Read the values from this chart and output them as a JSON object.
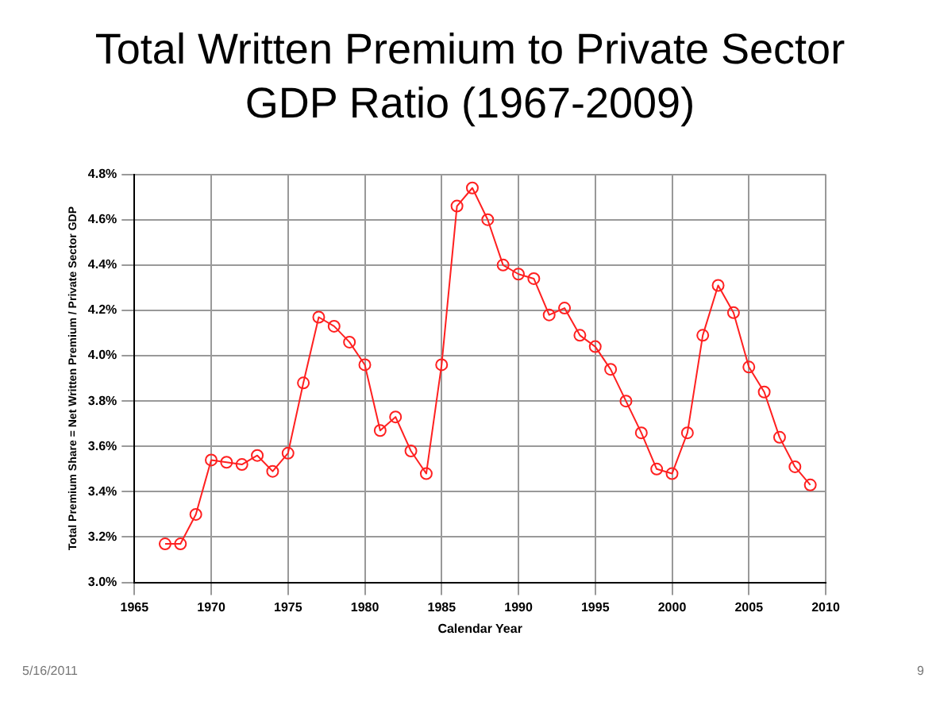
{
  "chart_data": {
    "type": "line",
    "title": "Total Written Premium to Private Sector GDP Ratio (1967-2009)",
    "xlabel": "Calendar Year",
    "ylabel": "Total Premium Share = Net Written Premium / Private Sector GDP",
    "x": [
      1967,
      1968,
      1969,
      1970,
      1971,
      1972,
      1973,
      1974,
      1975,
      1976,
      1977,
      1978,
      1979,
      1980,
      1981,
      1982,
      1983,
      1984,
      1985,
      1986,
      1987,
      1988,
      1989,
      1990,
      1991,
      1992,
      1993,
      1994,
      1995,
      1996,
      1997,
      1998,
      1999,
      2000,
      2001,
      2002,
      2003,
      2004,
      2005,
      2006,
      2007,
      2008,
      2009
    ],
    "series": [
      {
        "color": "#ff2020",
        "values": [
          3.17,
          3.17,
          3.3,
          3.54,
          3.53,
          3.52,
          3.56,
          3.49,
          3.57,
          3.88,
          4.17,
          4.13,
          4.06,
          3.96,
          3.67,
          3.73,
          3.58,
          3.48,
          3.96,
          4.66,
          4.74,
          4.6,
          4.4,
          4.36,
          4.34,
          4.18,
          4.21,
          4.09,
          4.04,
          3.94,
          3.8,
          3.66,
          3.5,
          3.48,
          3.66,
          4.09,
          4.31,
          4.19,
          3.95,
          3.84,
          3.64,
          3.51,
          3.43
        ]
      }
    ],
    "xlim": [
      1965,
      2010
    ],
    "xticks": [
      1965,
      1970,
      1975,
      1980,
      1985,
      1990,
      1995,
      2000,
      2005,
      2010
    ],
    "ylim": [
      3.0,
      4.8
    ],
    "yticks": [
      {
        "value": 3.0,
        "label": "3.0%"
      },
      {
        "value": 3.2,
        "label": "3.2%"
      },
      {
        "value": 3.4,
        "label": "3.4%"
      },
      {
        "value": 3.6,
        "label": "3.6%"
      },
      {
        "value": 3.8,
        "label": "3.8%"
      },
      {
        "value": 4.0,
        "label": "4.0%"
      },
      {
        "value": 4.2,
        "label": "4.2%"
      },
      {
        "value": 4.4,
        "label": "4.4%"
      },
      {
        "value": 4.6,
        "label": "4.6%"
      },
      {
        "value": 4.8,
        "label": "4.8%"
      }
    ],
    "grid": true,
    "legend": false,
    "marker": "circle",
    "line_style": "solid",
    "annotations": [
      "5/16/2011",
      "9"
    ]
  }
}
